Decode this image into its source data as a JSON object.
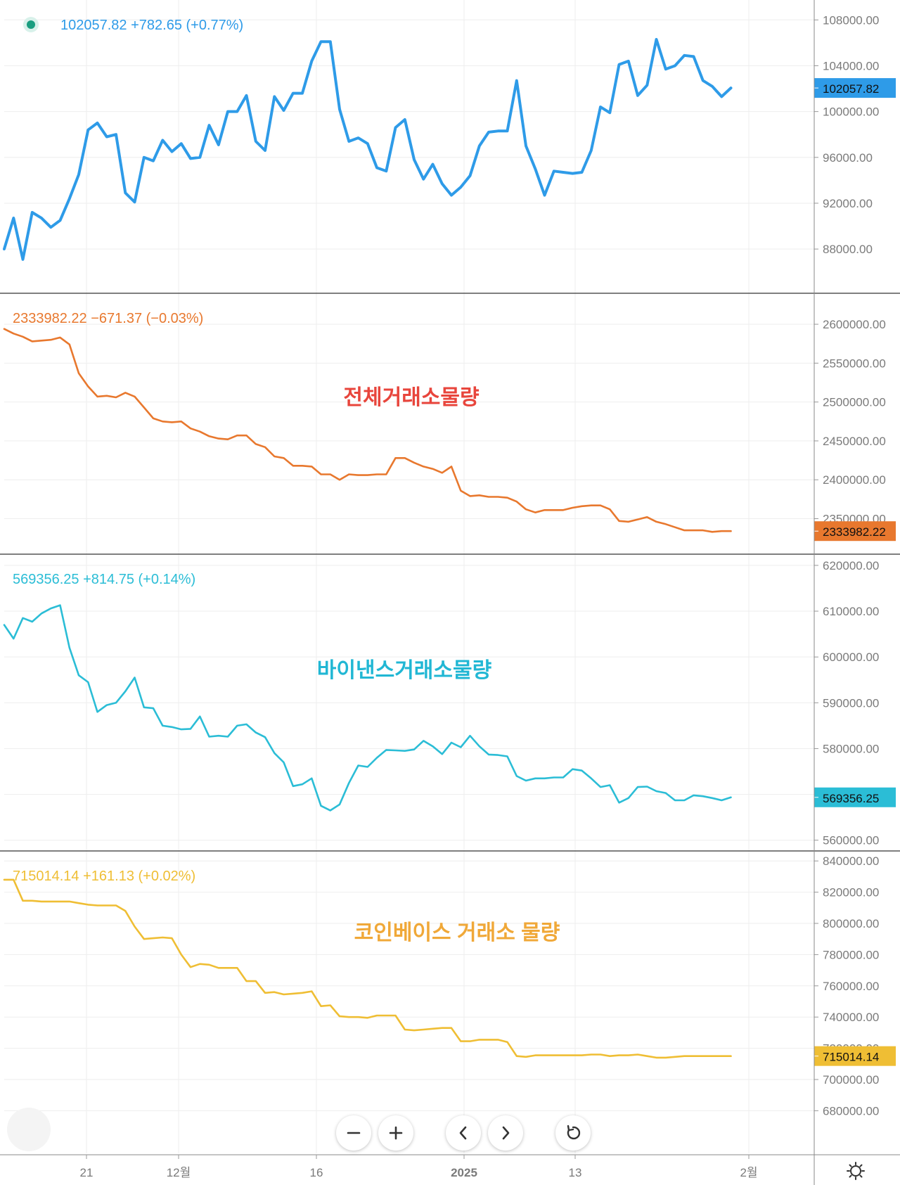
{
  "chart_data": [
    {
      "type": "line",
      "legend": "102057.82  +782.65 (+0.77%)",
      "last_value": 102057.82,
      "last_label": "102057.82",
      "color": "#2e9be8",
      "ylim": [
        85000,
        109000
      ],
      "yticks": [
        88000,
        92000,
        96000,
        100000,
        104000,
        108000
      ],
      "ytick_labels": [
        "88000.00",
        "92000.00",
        "96000.00",
        "100000.00",
        "104000.00",
        "108000.00"
      ],
      "values": [
        88000,
        90700,
        87100,
        91200,
        90700,
        89900,
        90500,
        92400,
        94500,
        98400,
        99000,
        97800,
        98000,
        92900,
        92100,
        96000,
        95700,
        97500,
        96500,
        97200,
        95900,
        96000,
        98800,
        97100,
        100000,
        100000,
        101400,
        97400,
        96600,
        101300,
        100100,
        101600,
        101600,
        104400,
        106100,
        106100,
        100200,
        97400,
        97700,
        97200,
        95100,
        94800,
        98600,
        99300,
        95800,
        94100,
        95400,
        93700,
        92700,
        93400,
        94400,
        97000,
        98200,
        98300,
        98300,
        102700,
        97000,
        95000,
        92700,
        94800,
        94700,
        94600,
        94700,
        96600,
        100400,
        99900,
        104100,
        104400,
        101400,
        102300,
        106300,
        103700,
        104000,
        104900,
        104800,
        102700,
        102200,
        101300,
        102057.82
      ]
    },
    {
      "type": "line",
      "legend": "2333982.22  −671.37 (−0.03%)",
      "annotation": "전체거래소물량",
      "annotation_color": "#e8453c",
      "last_value": 2333982.22,
      "last_label": "2333982.22",
      "color": "#e8782e",
      "ylim": [
        2317000,
        2629000
      ],
      "yticks": [
        2350000,
        2400000,
        2450000,
        2500000,
        2550000,
        2600000
      ],
      "ytick_labels": [
        "2350000.00",
        "2400000.00",
        "2450000.00",
        "2500000.00",
        "2550000.00",
        "2600000.00"
      ],
      "values": [
        2594000,
        2588000,
        2584000,
        2578000,
        2579000,
        2580000,
        2583000,
        2574000,
        2537000,
        2520000,
        2507000,
        2508000,
        2506000,
        2512000,
        2507000,
        2493000,
        2479000,
        2475000,
        2474000,
        2475000,
        2466000,
        2462000,
        2456000,
        2453000,
        2452000,
        2457000,
        2457000,
        2446000,
        2442000,
        2430000,
        2428000,
        2418000,
        2418000,
        2417000,
        2407000,
        2407000,
        2400000,
        2407000,
        2406000,
        2406000,
        2407000,
        2407000,
        2428000,
        2428000,
        2422000,
        2417000,
        2414000,
        2409000,
        2417000,
        2386000,
        2379000,
        2380000,
        2378000,
        2378000,
        2377000,
        2372000,
        2362000,
        2358000,
        2361000,
        2361000,
        2361000,
        2364000,
        2366000,
        2367000,
        2367000,
        2362000,
        2347000,
        2346000,
        2349000,
        2352000,
        2346000,
        2343000,
        2339000,
        2335000,
        2335000,
        2335000,
        2333000,
        2334000,
        2333982.22
      ]
    },
    {
      "type": "line",
      "legend": "569356.25  +814.75 (+0.14%)",
      "annotation": "바이낸스거래소물량",
      "annotation_color": "#21b7d4",
      "last_value": 569356.25,
      "last_label": "569356.25",
      "color": "#2bbdd6",
      "ylim": [
        559800,
        620600
      ],
      "yticks": [
        560000,
        570000,
        580000,
        590000,
        600000,
        610000,
        620000
      ],
      "ytick_labels": [
        "560000.00",
        "570000.00",
        "580000.00",
        "590000.00",
        "600000.00",
        "610000.00",
        "620000.00"
      ],
      "values": [
        607000,
        604000,
        608500,
        607700,
        609500,
        610600,
        611300,
        602000,
        596000,
        594500,
        588000,
        589500,
        590000,
        592500,
        595500,
        589000,
        588800,
        585000,
        584700,
        584200,
        584300,
        587000,
        582600,
        582800,
        582600,
        585000,
        585300,
        583500,
        582500,
        579000,
        577000,
        571800,
        572200,
        573500,
        567500,
        566500,
        567800,
        572500,
        576300,
        576000,
        578000,
        579700,
        579600,
        579500,
        579800,
        581700,
        580500,
        578800,
        581300,
        580300,
        582800,
        580500,
        578700,
        578600,
        578300,
        574000,
        573000,
        573500,
        573500,
        573700,
        573700,
        575500,
        575200,
        573500,
        571600,
        572000,
        568200,
        569200,
        571600,
        571700,
        570700,
        570300,
        568700,
        568700,
        569800,
        569600,
        569200,
        568700,
        569356.25
      ]
    },
    {
      "type": "line",
      "legend": "715014.14  +161.13 (+0.02%)",
      "annotation": "코인베이스 거래소 물량",
      "annotation_color": "#f0a838",
      "last_value": 715014.14,
      "last_label": "715014.14",
      "color": "#efbe34",
      "ylim": [
        659000,
        841000
      ],
      "yticks": [
        680000,
        700000,
        720000,
        740000,
        760000,
        780000,
        800000,
        820000,
        840000
      ],
      "ytick_labels": [
        "680000.00",
        "700000.00",
        "720000.00",
        "740000.00",
        "760000.00",
        "780000.00",
        "800000.00",
        "820000.00",
        "840000.00"
      ],
      "values": [
        828000,
        828000,
        814500,
        814500,
        814000,
        814000,
        814000,
        814000,
        813000,
        812000,
        811500,
        811500,
        811500,
        808000,
        798000,
        790000,
        790500,
        791000,
        790500,
        780000,
        772000,
        774000,
        773500,
        771500,
        771500,
        771500,
        763000,
        763000,
        755500,
        756000,
        754500,
        755000,
        755500,
        756500,
        747000,
        747500,
        740500,
        740000,
        740000,
        739500,
        741000,
        741000,
        741000,
        732000,
        731500,
        732000,
        732500,
        733000,
        733000,
        724500,
        724500,
        725500,
        725500,
        725500,
        724000,
        715000,
        714500,
        715500,
        715500,
        715500,
        715500,
        715500,
        715500,
        716000,
        716000,
        715000,
        715500,
        715500,
        716000,
        715000,
        714000,
        714000,
        714500,
        715000,
        715000,
        715000,
        715000,
        715000,
        715014.14
      ]
    }
  ],
  "x_axis": {
    "labels": [
      "21",
      "12월",
      "16",
      "2025",
      "13",
      "2월"
    ],
    "positions": [
      5,
      14,
      29,
      44,
      55.5,
      73
    ]
  },
  "controls": {
    "zoom_out_icon": "minus-icon",
    "zoom_in_icon": "plus-icon",
    "scroll_left_icon": "chevron-left-icon",
    "scroll_right_icon": "chevron-right-icon",
    "reset_icon": "reset-icon",
    "settings_icon": "settings-icon"
  }
}
